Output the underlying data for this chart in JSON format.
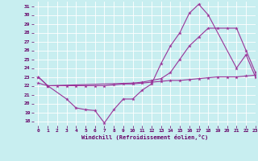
{
  "line1_x": [
    0,
    1,
    3,
    4,
    5,
    6,
    7,
    8,
    9,
    10,
    11,
    12,
    13,
    14,
    15,
    16,
    17,
    18,
    21,
    22,
    23
  ],
  "line1_y": [
    23.0,
    22.0,
    20.5,
    19.5,
    19.3,
    19.2,
    17.8,
    19.3,
    20.5,
    20.5,
    21.5,
    22.2,
    24.5,
    26.5,
    28.0,
    30.2,
    31.2,
    30.0,
    24.0,
    25.5,
    23.0
  ],
  "line2_x": [
    0,
    1,
    10,
    11,
    12,
    13,
    14,
    15,
    16,
    17,
    18,
    19,
    20,
    21,
    22,
    23
  ],
  "line2_y": [
    23.0,
    22.0,
    22.3,
    22.4,
    22.6,
    22.8,
    23.5,
    25.0,
    26.5,
    27.5,
    28.5,
    28.5,
    28.5,
    28.5,
    26.0,
    23.5
  ],
  "line3_x": [
    0,
    1,
    2,
    3,
    4,
    5,
    6,
    7,
    8,
    9,
    10,
    11,
    12,
    13,
    14,
    15,
    16,
    17,
    18,
    19,
    20,
    21,
    22,
    23
  ],
  "line3_y": [
    22.3,
    22.0,
    22.0,
    22.0,
    22.0,
    22.0,
    22.0,
    22.0,
    22.1,
    22.2,
    22.2,
    22.3,
    22.4,
    22.5,
    22.6,
    22.6,
    22.7,
    22.8,
    22.9,
    23.0,
    23.0,
    23.0,
    23.1,
    23.2
  ],
  "color": "#993399",
  "bg_color": "#c8eef0",
  "grid_color": "#ffffff",
  "xlabel": "Windchill (Refroidissement éolien,°C)",
  "ylim": [
    17.5,
    31.5
  ],
  "xlim": [
    -0.5,
    23
  ],
  "yticks": [
    18,
    19,
    20,
    21,
    22,
    23,
    24,
    25,
    26,
    27,
    28,
    29,
    30,
    31
  ],
  "xticks": [
    0,
    1,
    2,
    3,
    4,
    5,
    6,
    7,
    8,
    9,
    10,
    11,
    12,
    13,
    14,
    15,
    16,
    17,
    18,
    19,
    20,
    21,
    22,
    23
  ]
}
